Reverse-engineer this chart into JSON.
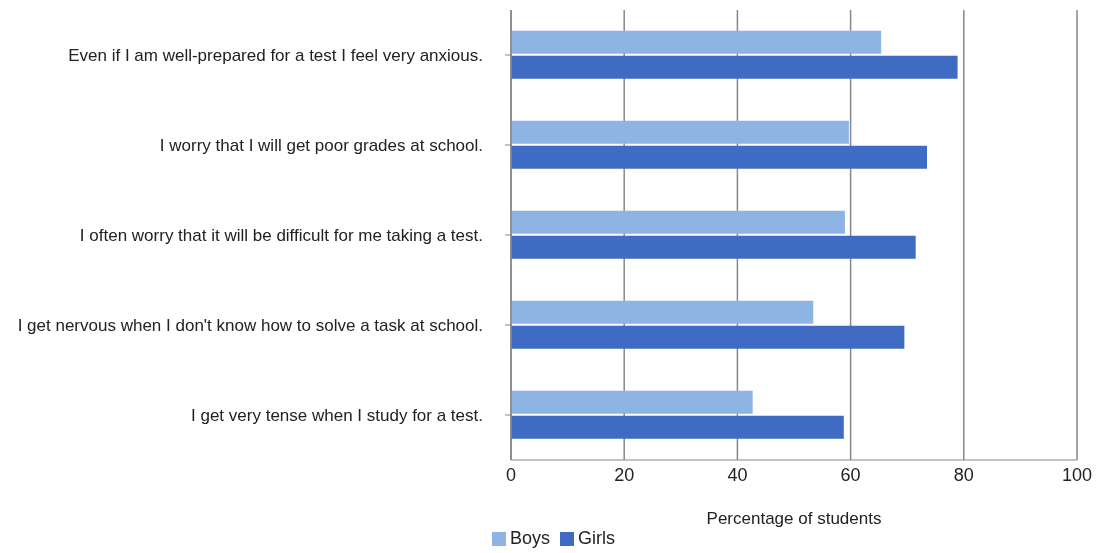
{
  "chart_data": {
    "type": "bar",
    "orientation": "horizontal",
    "xlabel": "Percentage of students",
    "categories": [
      "Even if I am well-prepared for a test I feel very anxious.",
      "I worry that I will get poor grades at school.",
      "I often worry that it will be difficult for me taking a test.",
      "I get nervous when I don't know how to solve a task at school.",
      "I get very tense when I study for a test."
    ],
    "series": [
      {
        "name": "Boys",
        "color": "#8eb4e3",
        "values": [
          65.4,
          59.7,
          59.0,
          53.4,
          42.7
        ]
      },
      {
        "name": "Girls",
        "color": "#3f6cc2",
        "values": [
          78.9,
          73.5,
          71.5,
          69.5,
          58.8
        ]
      }
    ],
    "xlim": [
      0,
      100
    ],
    "xticks": [
      0,
      20,
      40,
      60,
      80,
      100
    ],
    "grid": "x",
    "legend": "bottom"
  }
}
